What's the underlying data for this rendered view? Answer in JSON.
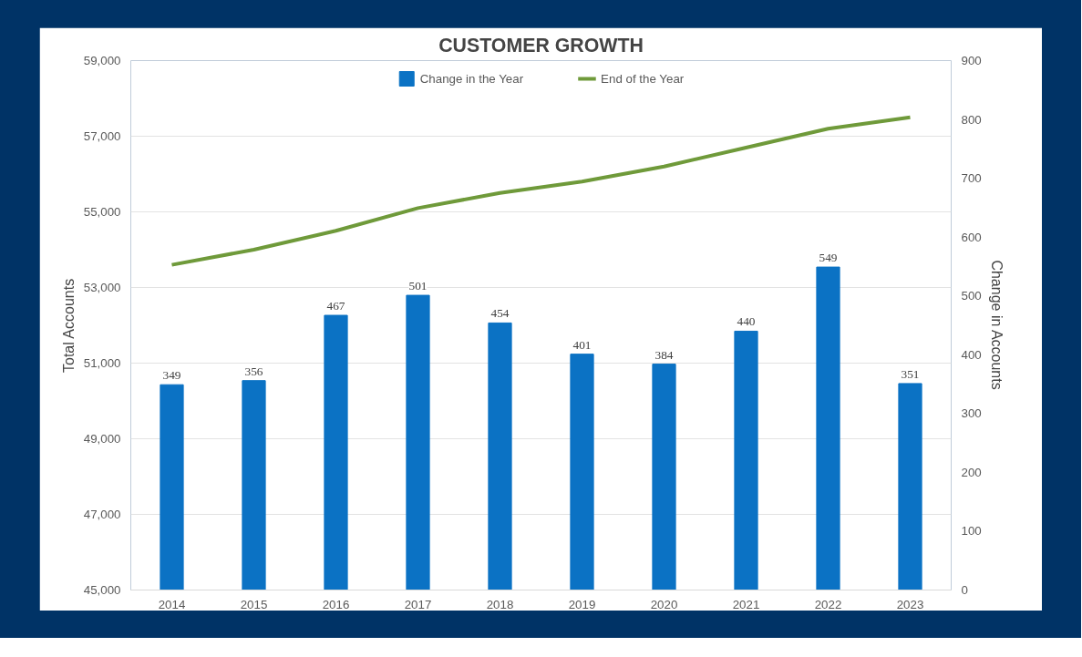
{
  "chart_data": {
    "type": "bar",
    "title": "CUSTOMER GROWTH",
    "ylabel": "Total Accounts",
    "y2label": "Change in Accounts",
    "categories": [
      "2014",
      "2015",
      "2016",
      "2017",
      "2018",
      "2019",
      "2020",
      "2021",
      "2022",
      "2023"
    ],
    "series": [
      {
        "name": "Change in the Year",
        "axis": "y2",
        "color": "#0b72c4",
        "values": [
          349,
          356,
          467,
          501,
          454,
          401,
          384,
          440,
          549,
          351
        ],
        "value_labels": [
          "349",
          "356",
          "467",
          "501",
          "454",
          "401",
          "384",
          "440",
          "549",
          "351"
        ]
      },
      {
        "name": "End of the Year",
        "type": "line",
        "axis": "y",
        "color": "#6f9a3a",
        "values": [
          53600,
          54000,
          54500,
          55100,
          55500,
          55800,
          56200,
          56700,
          57200,
          57500
        ]
      }
    ],
    "ylim": [
      45000,
      59000
    ],
    "yticks": [
      {
        "value": 45000,
        "label": "45,000"
      },
      {
        "value": 47000,
        "label": "47,000"
      },
      {
        "value": 49000,
        "label": "49,000"
      },
      {
        "value": 51000,
        "label": "51,000"
      },
      {
        "value": 53000,
        "label": "53,000"
      },
      {
        "value": 55000,
        "label": "55,000"
      },
      {
        "value": 57000,
        "label": "57,000"
      },
      {
        "value": 59000,
        "label": "59,000"
      }
    ],
    "y2lim": [
      0,
      900
    ],
    "y2ticks": [
      0,
      100,
      200,
      300,
      400,
      500,
      600,
      700,
      800,
      900
    ],
    "grid": "y",
    "legend": "top"
  }
}
